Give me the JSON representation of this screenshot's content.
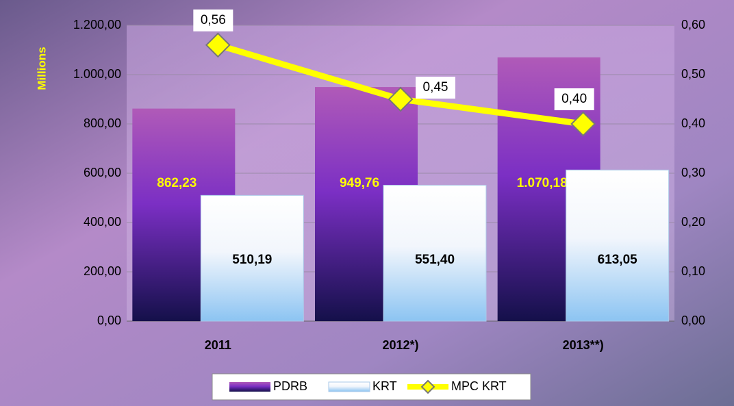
{
  "chart_data": {
    "type": "bar",
    "y_axis_label": "Millions",
    "categories": [
      "2011",
      "2012*)",
      "2013**)"
    ],
    "series": [
      {
        "name": "PDRB",
        "color": "#7b2fc4",
        "values": [
          862.23,
          949.76,
          1070.18
        ],
        "value_labels": [
          "862,23",
          "949,76",
          "1.070,18"
        ]
      },
      {
        "name": "KRT",
        "color": "#8cc4f2",
        "values": [
          510.19,
          551.4,
          613.05
        ],
        "value_labels": [
          "510,19",
          "551,40",
          "613,05"
        ]
      },
      {
        "name": "MPC KRT",
        "type": "line",
        "axis": "y2",
        "color": "#ffff00",
        "values": [
          0.56,
          0.45,
          0.4
        ],
        "value_labels": [
          "0,56",
          "0,45",
          "0,40"
        ]
      }
    ],
    "ylim": [
      0,
      1200
    ],
    "yticks": [
      {
        "value": 0,
        "label": "0,00"
      },
      {
        "value": 200,
        "label": "200,00"
      },
      {
        "value": 400,
        "label": "400,00"
      },
      {
        "value": 600,
        "label": "600,00"
      },
      {
        "value": 800,
        "label": "800,00"
      },
      {
        "value": 1000,
        "label": "1.000,00"
      },
      {
        "value": 1200,
        "label": "1.200,00"
      }
    ],
    "y2lim": [
      0,
      0.6
    ],
    "y2ticks": [
      {
        "value": 0,
        "label": "0,00"
      },
      {
        "value": 0.1,
        "label": "0,10"
      },
      {
        "value": 0.2,
        "label": "0,20"
      },
      {
        "value": 0.3,
        "label": "0,30"
      },
      {
        "value": 0.4,
        "label": "0,40"
      },
      {
        "value": 0.5,
        "label": "0,50"
      },
      {
        "value": 0.6,
        "label": "0,60"
      }
    ],
    "grid": true,
    "legend": "bottom"
  }
}
